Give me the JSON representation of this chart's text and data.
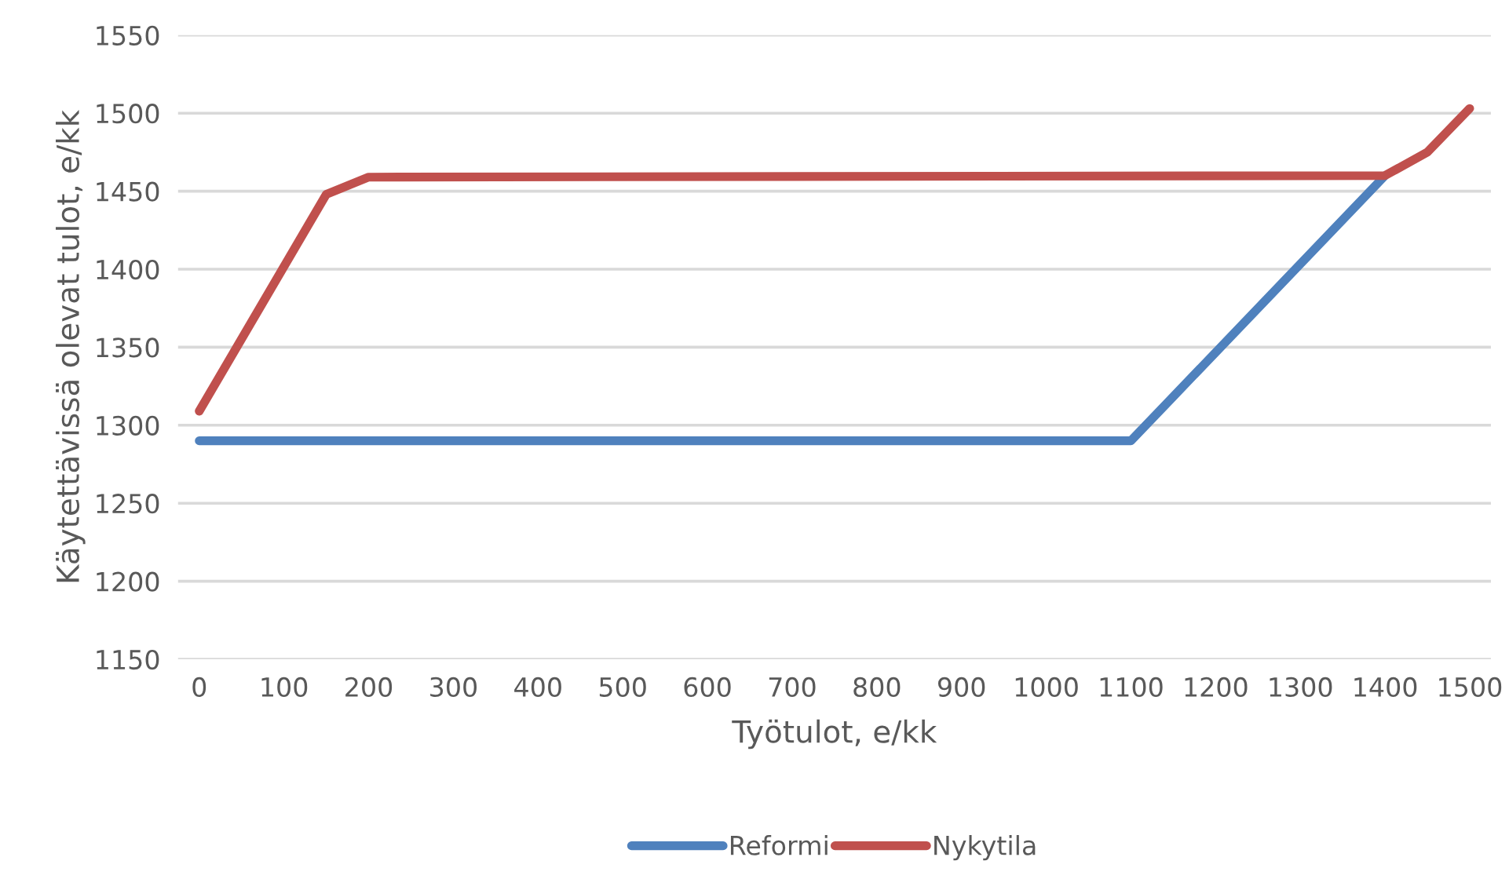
{
  "chart_data": {
    "type": "line",
    "xlabel": "Työtulot, e/kk",
    "ylabel": "Käytettävissä olevat tulot, e/kk",
    "xlim": [
      -25,
      1525
    ],
    "xticks": [
      0,
      100,
      200,
      300,
      400,
      500,
      600,
      700,
      800,
      900,
      1000,
      1100,
      1200,
      1300,
      1400,
      1500
    ],
    "ylim": [
      1150,
      1550
    ],
    "yticks": [
      1150,
      1200,
      1250,
      1300,
      1350,
      1400,
      1450,
      1500,
      1550
    ],
    "grid": "y",
    "legend": "bottom",
    "marker": "none",
    "line_style": "solid",
    "series": [
      {
        "name": "Reformi",
        "color": "#4f81bd",
        "x": [
          0,
          1100,
          1400
        ],
        "values": [
          1290,
          1290,
          1460
        ]
      },
      {
        "name": "Nykytila",
        "color": "#c0504d",
        "x": [
          0,
          150,
          200,
          1400,
          1450,
          1500
        ],
        "values": [
          1309,
          1448,
          1459,
          1460,
          1475,
          1503
        ]
      }
    ]
  }
}
